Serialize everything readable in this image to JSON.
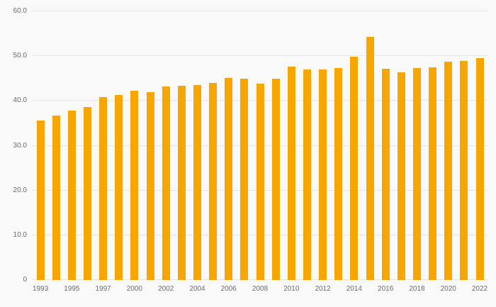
{
  "chart_data": {
    "type": "bar",
    "title": "",
    "xlabel": "",
    "ylabel": "",
    "categories": [
      "1993",
      "1994",
      "1995",
      "1996",
      "1997",
      "1998",
      "2000",
      "2001",
      "2002",
      "2003",
      "2004",
      "2005",
      "2006",
      "2007",
      "2008",
      "2009",
      "2010",
      "2011",
      "2012",
      "2013",
      "2014",
      "2015",
      "2016",
      "2017",
      "2018",
      "2019",
      "2020",
      "2021",
      "2022"
    ],
    "values": [
      35.6,
      36.8,
      37.8,
      38.6,
      40.8,
      41.4,
      42.2,
      42.0,
      43.3,
      43.4,
      43.5,
      44.0,
      45.2,
      44.9,
      43.9,
      45.0,
      47.7,
      47.1,
      47.1,
      47.4,
      49.9,
      54.3,
      47.2,
      46.4,
      47.4,
      47.5,
      48.8,
      48.9,
      49.5
    ],
    "ylim": [
      0,
      60
    ],
    "yticks": [
      {
        "value": 0,
        "label": "0"
      },
      {
        "value": 10,
        "label": "10.0"
      },
      {
        "value": 20,
        "label": "20.0"
      },
      {
        "value": 30,
        "label": "30.0"
      },
      {
        "value": 40,
        "label": "40.0"
      },
      {
        "value": 50,
        "label": "50.0"
      },
      {
        "value": 60,
        "label": "60.0"
      }
    ],
    "xticklabels": [
      "1993",
      "1995",
      "1997",
      "2000",
      "2002",
      "2004",
      "2006",
      "2008",
      "2010",
      "2012",
      "2014",
      "2016",
      "2018",
      "2020",
      "2022"
    ],
    "xtick_every": 2,
    "grid": "horizontal",
    "legend": "none",
    "bar_color": "#f7a600",
    "background_color": "#f9f9f9",
    "gridline_color": "#e6e6e6",
    "label_color": "#6b6b6b"
  }
}
